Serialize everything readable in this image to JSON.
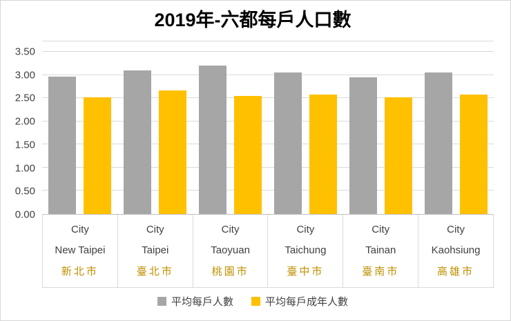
{
  "chart_data": {
    "type": "bar",
    "title": "2019年-六都每戶人口數",
    "categories": [
      {
        "label_top": "City",
        "label_en": "New Taipei",
        "label_zh": "新北市"
      },
      {
        "label_top": "City",
        "label_en": "Taipei",
        "label_zh": "臺北市"
      },
      {
        "label_top": "City",
        "label_en": "Taoyuan",
        "label_zh": "桃園市"
      },
      {
        "label_top": "City",
        "label_en": "Taichung",
        "label_zh": "臺中市"
      },
      {
        "label_top": "City",
        "label_en": "Tainan",
        "label_zh": "臺南市"
      },
      {
        "label_top": "City",
        "label_en": "Kaohsiung",
        "label_zh": "高雄市"
      }
    ],
    "series": [
      {
        "key": "avg-persons-per-household",
        "name": "平均每戶人數",
        "color": "#A6A6A6",
        "values": [
          2.96,
          3.1,
          3.2,
          3.06,
          2.95,
          3.05
        ]
      },
      {
        "key": "avg-adults-per-household",
        "name": "平均每戶成年人數",
        "color": "#FFC000",
        "values": [
          2.51,
          2.66,
          2.55,
          2.58,
          2.51,
          2.58
        ]
      }
    ],
    "ylim": [
      0,
      3.5
    ],
    "ytick_step": 0.5,
    "yticks": [
      "0.00",
      "0.50",
      "1.00",
      "1.50",
      "2.00",
      "2.50",
      "3.00",
      "3.50"
    ],
    "grid": true,
    "legend_position": "bottom"
  },
  "colors": {
    "series_gray": "#A6A6A6",
    "series_gold": "#FFC000",
    "gridline": "#D9D9D9",
    "category_zh_text": "#BF8F00"
  }
}
